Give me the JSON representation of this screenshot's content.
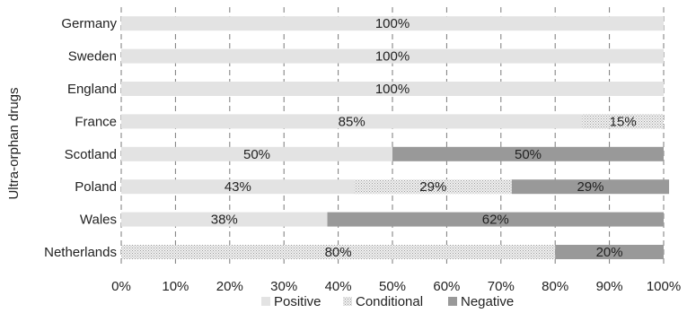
{
  "chart_data": {
    "type": "bar",
    "orientation": "horizontal",
    "stacked": true,
    "ylabel": "Ultra-orphan drugs",
    "xlabel": "",
    "xlim": [
      0,
      100
    ],
    "x_ticks": [
      "0%",
      "10%",
      "20%",
      "30%",
      "40%",
      "50%",
      "60%",
      "70%",
      "80%",
      "90%",
      "100%"
    ],
    "grid": "vertical dashed",
    "legend_position": "bottom",
    "categories": [
      "Germany",
      "Sweden",
      "England",
      "France",
      "Scotland",
      "Poland",
      "Wales",
      "Netherlands"
    ],
    "series": [
      {
        "name": "Positive",
        "color": "#e3e3e3",
        "pattern": "solid",
        "values": [
          100,
          100,
          100,
          85,
          50,
          43,
          38,
          0
        ]
      },
      {
        "name": "Conditional",
        "color": "#d9d9d9",
        "pattern": "dotted",
        "values": [
          0,
          0,
          0,
          15,
          0,
          29,
          0,
          80
        ]
      },
      {
        "name": "Negative",
        "color": "#999999",
        "pattern": "solid",
        "values": [
          0,
          0,
          0,
          0,
          50,
          29,
          62,
          20
        ]
      }
    ],
    "data_labels": [
      [
        "100%",
        "",
        ""
      ],
      [
        "100%",
        "",
        ""
      ],
      [
        "100%",
        "",
        ""
      ],
      [
        "85%",
        "15%",
        ""
      ],
      [
        "50%",
        "",
        "50%"
      ],
      [
        "43%",
        "29%",
        "29%"
      ],
      [
        "38%",
        "",
        "62%"
      ],
      [
        "",
        "80%",
        "20%"
      ]
    ]
  }
}
